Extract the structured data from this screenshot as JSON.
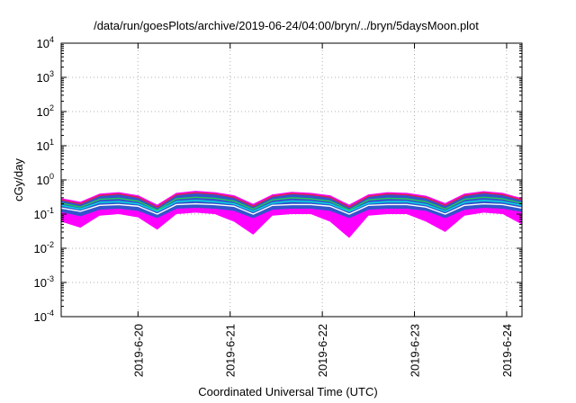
{
  "chart_data": {
    "type": "area",
    "title": "/data/run/goesPlots/archive/2019-06-24/04:00/bryn/../bryn/5daysMoon.plot",
    "xlabel": "Coordinated Universal Time (UTC)",
    "ylabel": "cGy/day",
    "yscale": "log",
    "ylim": [
      0.0001,
      10000
    ],
    "xlim": [
      "2019-06-19T04:00",
      "2019-06-24T04:00"
    ],
    "grid": true,
    "legend": "none",
    "y_ticks": [
      {
        "base": "10",
        "exp": "-4",
        "value": 0.0001
      },
      {
        "base": "10",
        "exp": "-3",
        "value": 0.001
      },
      {
        "base": "10",
        "exp": "-2",
        "value": 0.01
      },
      {
        "base": "10",
        "exp": "-1",
        "value": 0.1
      },
      {
        "base": "10",
        "exp": "0",
        "value": 1
      },
      {
        "base": "10",
        "exp": "1",
        "value": 10
      },
      {
        "base": "10",
        "exp": "2",
        "value": 100
      },
      {
        "base": "10",
        "exp": "3",
        "value": 1000
      },
      {
        "base": "10",
        "exp": "4",
        "value": 10000
      }
    ],
    "x_ticks": [
      "2019-6-20",
      "2019-6-21",
      "2019-6-22",
      "2019-6-23",
      "2019-6-24"
    ],
    "x_tick_dates": [
      "2019-06-20T00:00",
      "2019-06-21T00:00",
      "2019-06-22T00:00",
      "2019-06-23T00:00",
      "2019-06-24T00:00"
    ],
    "series_colors": {
      "fill": "#3355cc",
      "lines": [
        "#ff00ff",
        "#e8204a",
        "#22cc55",
        "#00e0e0",
        "#ffffff",
        "#3355cc"
      ],
      "band_lower": "#ff00ff"
    },
    "x": [
      "2019-06-19T04:00",
      "2019-06-19T09:00",
      "2019-06-19T14:00",
      "2019-06-19T19:00",
      "2019-06-20T00:00",
      "2019-06-20T05:00",
      "2019-06-20T10:00",
      "2019-06-20T15:00",
      "2019-06-20T20:00",
      "2019-06-21T01:00",
      "2019-06-21T06:00",
      "2019-06-21T11:00",
      "2019-06-21T16:00",
      "2019-06-21T21:00",
      "2019-06-22T02:00",
      "2019-06-22T07:00",
      "2019-06-22T12:00",
      "2019-06-22T17:00",
      "2019-06-22T22:00",
      "2019-06-23T03:00",
      "2019-06-23T08:00",
      "2019-06-23T13:00",
      "2019-06-23T18:00",
      "2019-06-23T23:00",
      "2019-06-24T04:00"
    ],
    "series": [
      {
        "values": [
          0.28,
          0.22,
          0.38,
          0.42,
          0.34,
          0.18,
          0.4,
          0.46,
          0.42,
          0.34,
          0.19,
          0.36,
          0.43,
          0.4,
          0.34,
          0.18,
          0.36,
          0.42,
          0.4,
          0.33,
          0.2,
          0.38,
          0.45,
          0.4,
          0.28
        ]
      },
      {
        "values": [
          0.26,
          0.2,
          0.35,
          0.39,
          0.31,
          0.16,
          0.37,
          0.42,
          0.39,
          0.31,
          0.17,
          0.33,
          0.4,
          0.37,
          0.31,
          0.16,
          0.33,
          0.39,
          0.37,
          0.3,
          0.18,
          0.35,
          0.42,
          0.37,
          0.26
        ]
      },
      {
        "values": [
          0.21,
          0.16,
          0.27,
          0.29,
          0.24,
          0.13,
          0.28,
          0.31,
          0.29,
          0.24,
          0.14,
          0.26,
          0.3,
          0.28,
          0.24,
          0.13,
          0.26,
          0.29,
          0.28,
          0.23,
          0.14,
          0.27,
          0.31,
          0.28,
          0.21
        ]
      },
      {
        "values": [
          0.18,
          0.14,
          0.22,
          0.23,
          0.2,
          0.12,
          0.23,
          0.25,
          0.23,
          0.2,
          0.12,
          0.21,
          0.24,
          0.23,
          0.2,
          0.12,
          0.21,
          0.23,
          0.23,
          0.19,
          0.12,
          0.22,
          0.25,
          0.23,
          0.18
        ]
      },
      {
        "values": [
          0.15,
          0.12,
          0.18,
          0.19,
          0.17,
          0.1,
          0.19,
          0.2,
          0.19,
          0.17,
          0.1,
          0.18,
          0.19,
          0.19,
          0.17,
          0.1,
          0.18,
          0.19,
          0.19,
          0.16,
          0.1,
          0.18,
          0.2,
          0.19,
          0.15
        ]
      },
      {
        "values": [
          0.12,
          0.09,
          0.14,
          0.15,
          0.13,
          0.08,
          0.15,
          0.16,
          0.15,
          0.13,
          0.08,
          0.14,
          0.15,
          0.15,
          0.13,
          0.08,
          0.14,
          0.15,
          0.15,
          0.13,
          0.08,
          0.14,
          0.16,
          0.15,
          0.12
        ]
      }
    ],
    "band_lower": [
      0.06,
      0.04,
      0.09,
      0.1,
      0.08,
      0.035,
      0.1,
      0.11,
      0.1,
      0.06,
      0.025,
      0.09,
      0.1,
      0.1,
      0.06,
      0.02,
      0.09,
      0.1,
      0.1,
      0.06,
      0.03,
      0.09,
      0.11,
      0.1,
      0.05
    ]
  }
}
